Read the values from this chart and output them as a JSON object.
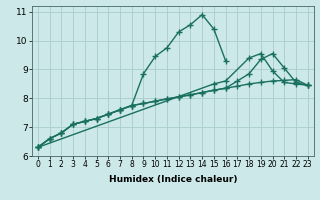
{
  "xlabel": "Humidex (Indice chaleur)",
  "ylabel": "",
  "xlim": [
    -0.5,
    23.5
  ],
  "ylim": [
    6,
    11.2
  ],
  "yticks": [
    6,
    7,
    8,
    9,
    10,
    11
  ],
  "xticks": [
    0,
    1,
    2,
    3,
    4,
    5,
    6,
    7,
    8,
    9,
    10,
    11,
    12,
    13,
    14,
    15,
    16,
    17,
    18,
    19,
    20,
    21,
    22,
    23
  ],
  "bg_color": "#cce8e8",
  "grid_color": "#aacccc",
  "line_color": "#1a7060",
  "lines": [
    [
      6.3,
      6.6,
      6.8,
      7.1,
      7.2,
      7.3,
      7.45,
      7.6,
      7.75,
      8.85,
      9.45,
      9.75,
      10.3,
      10.55,
      10.9,
      10.4,
      9.3,
      null,
      null,
      null,
      null,
      null,
      null,
      null
    ],
    [
      6.3,
      null,
      null,
      null,
      null,
      null,
      null,
      null,
      null,
      null,
      null,
      null,
      null,
      null,
      null,
      8.5,
      8.6,
      null,
      9.4,
      9.55,
      8.95,
      8.55,
      8.5,
      8.45
    ],
    [
      6.3,
      6.6,
      6.8,
      7.1,
      7.2,
      7.3,
      7.45,
      7.6,
      7.75,
      7.82,
      7.9,
      7.98,
      8.05,
      8.12,
      8.2,
      8.28,
      8.35,
      8.42,
      8.5,
      8.55,
      8.6,
      8.62,
      8.65,
      8.45
    ],
    [
      6.3,
      6.6,
      6.8,
      7.1,
      7.2,
      7.3,
      7.45,
      7.6,
      7.75,
      7.82,
      7.9,
      7.98,
      8.05,
      8.12,
      8.2,
      8.28,
      8.35,
      8.6,
      8.85,
      9.35,
      9.55,
      9.05,
      8.55,
      8.45
    ]
  ],
  "marker": "+",
  "markersize": 4,
  "linewidth": 1.0
}
